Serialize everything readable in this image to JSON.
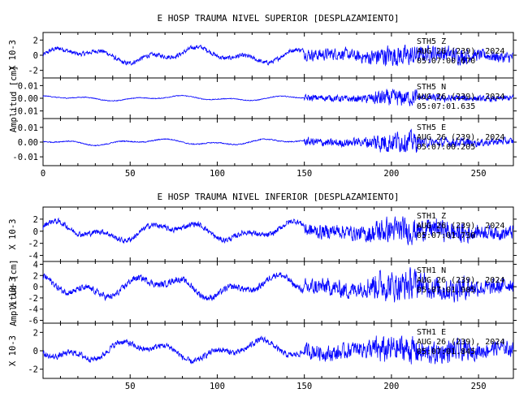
{
  "chart_data": [
    {
      "type": "line",
      "title": "E HOSP TRAUMA NIVEL SUPERIOR [DESPLAZAMIENTO]",
      "xlim": [
        0,
        270
      ],
      "x_ticks": [
        "0",
        "50",
        "100",
        "150",
        "200",
        "250"
      ],
      "ylabel": "Amplitud [cm]",
      "line_color": "#0000ff",
      "panels": [
        {
          "channel": "STH5 Z",
          "scale_label": "X 10-3",
          "ylim": [
            -3,
            3
          ],
          "y_ticks": [
            "2",
            "0",
            "-2"
          ],
          "annotation": [
            "STH5 Z",
            "AUG 26 (239), 2024",
            "05:07:00.670"
          ],
          "max_amplitude": 2.3
        },
        {
          "channel": "STH5 N",
          "scale_label": "",
          "ylim": [
            -0.016,
            0.016
          ],
          "y_ticks": [
            "0.01",
            "0.00",
            "-0.01"
          ],
          "annotation": [
            "STH5 N",
            "AUG 26 (239), 2024",
            "05:07:01.635"
          ],
          "max_amplitude": 0.011
        },
        {
          "channel": "STH5 E",
          "scale_label": "",
          "ylim": [
            -0.016,
            0.016
          ],
          "y_ticks": [
            "0.01",
            "0.00",
            "-0.01"
          ],
          "annotation": [
            "STH5 E",
            "AUG 26 (239), 2024",
            "05:07:00.205"
          ],
          "max_amplitude": 0.012
        }
      ]
    },
    {
      "type": "line",
      "title": "E HOSP TRAUMA NIVEL INFERIOR [DESPLAZAMIENTO]",
      "xlim": [
        0,
        270
      ],
      "x_ticks": [
        "50",
        "100",
        "150",
        "200",
        "250"
      ],
      "ylabel": "Amplitud [cm]",
      "line_color": "#0000ff",
      "panels": [
        {
          "channel": "STH1 Z",
          "scale_label": "X 10-3",
          "ylim": [
            -5,
            4
          ],
          "y_ticks": [
            "2",
            "0",
            "-2",
            "-4"
          ],
          "annotation": [
            "STH1 Z",
            "AUG 26 (239), 2024",
            "05:07:01.730"
          ],
          "max_amplitude": 3.5
        },
        {
          "channel": "STH1 N",
          "scale_label": "X 10-3",
          "ylim": [
            -6.5,
            4.5
          ],
          "y_ticks": [
            "4",
            "2",
            "0",
            "-2",
            "-4",
            "-6"
          ],
          "annotation": [
            "STH1 N",
            "AUG 26 (239), 2024",
            "05:07:01.905"
          ],
          "max_amplitude": 4.5
        },
        {
          "channel": "STH1 E",
          "scale_label": "X 10-3",
          "ylim": [
            -3,
            3
          ],
          "y_ticks": [
            "2",
            "0",
            "-2"
          ],
          "annotation": [
            "STH1 E",
            "AUG 26 (239), 2024",
            "05:07:01.845"
          ],
          "max_amplitude": 2.5
        }
      ]
    }
  ]
}
